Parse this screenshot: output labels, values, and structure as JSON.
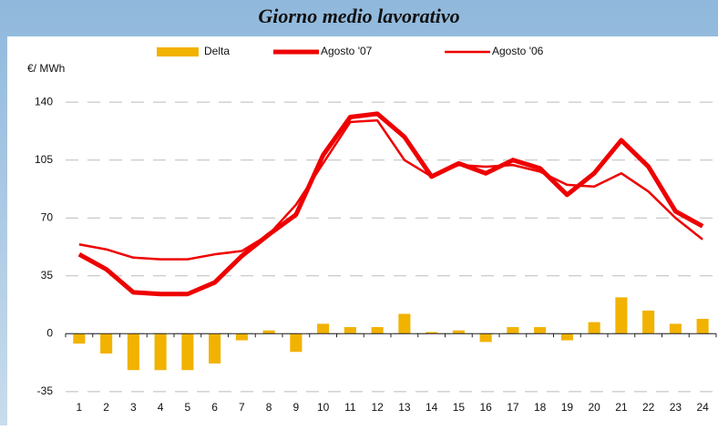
{
  "chart_data": {
    "type": "combo",
    "title": "Giorno medio lavorativo",
    "y_label": "€/ MWh",
    "categories": [
      "1",
      "2",
      "3",
      "4",
      "5",
      "6",
      "7",
      "8",
      "9",
      "10",
      "11",
      "12",
      "13",
      "14",
      "15",
      "16",
      "17",
      "18",
      "19",
      "20",
      "21",
      "22",
      "23",
      "24"
    ],
    "series": [
      {
        "name": "Delta",
        "kind": "bar",
        "color": "#f2b200",
        "values": [
          -6,
          -12,
          -22,
          -22,
          -22,
          -18,
          -4,
          2,
          -11,
          6,
          4,
          4,
          12,
          1,
          2,
          -5,
          4,
          4,
          -4,
          7,
          22,
          14,
          6,
          9
        ]
      },
      {
        "name": "Agosto '07",
        "kind": "line",
        "color": "#ee0000",
        "line_width": 5,
        "values": [
          48,
          39,
          25,
          24,
          24,
          31,
          47,
          60,
          72,
          108,
          131,
          133,
          119,
          95,
          103,
          97,
          105,
          100,
          84,
          97,
          117,
          101,
          74,
          65
        ]
      },
      {
        "name": "Agosto '06",
        "kind": "line",
        "color": "#ee0000",
        "line_width": 2.5,
        "values": [
          54,
          51,
          46,
          45,
          45,
          48,
          50,
          60,
          78,
          103,
          128,
          129,
          105,
          95,
          102,
          101,
          102,
          98,
          90,
          89,
          97,
          86,
          70,
          57
        ]
      }
    ],
    "ylim": [
      -45,
      150
    ],
    "yticks": [
      -35,
      0,
      35,
      70,
      105,
      140
    ],
    "grid": true,
    "legend": "top"
  }
}
